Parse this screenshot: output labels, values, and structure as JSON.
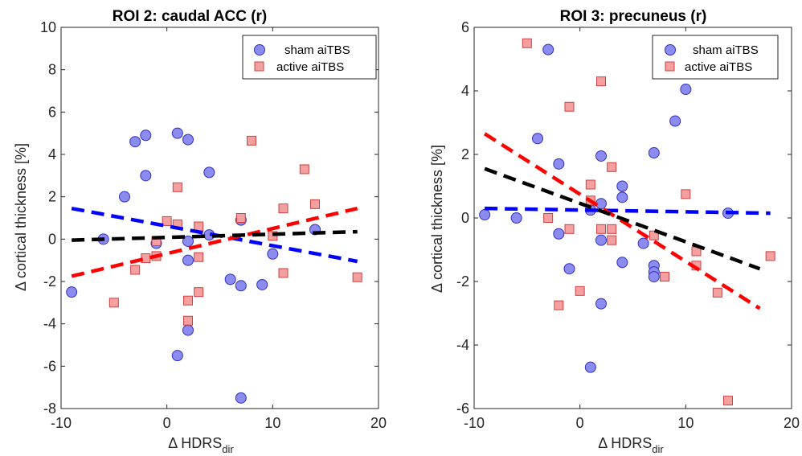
{
  "chart_data": [
    {
      "type": "scatter",
      "title": "ROI 2: caudal ACC (r)",
      "xlabel": "Δ HDRS",
      "xlabel_sub": "dir",
      "ylabel": "Δ cortical thickness [%]",
      "xlim": [
        -10,
        20
      ],
      "ylim": [
        -8,
        10
      ],
      "xticks": [
        -10,
        0,
        10,
        20
      ],
      "yticks": [
        -8,
        -6,
        -4,
        -2,
        0,
        2,
        4,
        6,
        8,
        10
      ],
      "legend_position": "top-right",
      "series": [
        {
          "name": "sham aiTBS",
          "marker": "circle",
          "color": "#8c8cf0",
          "points": [
            [
              -9,
              -2.5
            ],
            [
              -6,
              0
            ],
            [
              -4,
              2
            ],
            [
              -3,
              4.6
            ],
            [
              -2,
              4.9
            ],
            [
              -2,
              3
            ],
            [
              -1,
              -0.2
            ],
            [
              1,
              5
            ],
            [
              1,
              -5.5
            ],
            [
              2,
              4.7
            ],
            [
              2,
              -0.1
            ],
            [
              2,
              -1
            ],
            [
              2,
              -4.3
            ],
            [
              4,
              3.15
            ],
            [
              4,
              0.2
            ],
            [
              6,
              -1.9
            ],
            [
              7,
              0.9
            ],
            [
              7,
              -2.2
            ],
            [
              7,
              -7.5
            ],
            [
              9,
              -2.15
            ],
            [
              10,
              -0.7
            ],
            [
              14,
              0.45
            ]
          ]
        },
        {
          "name": "active aiTBS",
          "marker": "square",
          "color": "#f4a0a0",
          "points": [
            [
              -5,
              -3
            ],
            [
              -3,
              -1.45
            ],
            [
              -2,
              -0.9
            ],
            [
              -1,
              -0.8
            ],
            [
              -1,
              -0.1
            ],
            [
              0,
              0.85
            ],
            [
              1,
              2.45
            ],
            [
              1,
              0.7
            ],
            [
              2,
              -2.9
            ],
            [
              2,
              -3.85
            ],
            [
              3,
              0.6
            ],
            [
              3,
              -0.85
            ],
            [
              3,
              -2.5
            ],
            [
              7,
              1
            ],
            [
              8,
              4.65
            ],
            [
              10,
              0.15
            ],
            [
              11,
              -1.6
            ],
            [
              11,
              1.45
            ],
            [
              13,
              3.3
            ],
            [
              14,
              1.65
            ],
            [
              18,
              -1.8
            ]
          ]
        }
      ],
      "fit_lines": [
        {
          "color": "#0000ff",
          "x": [
            -9,
            18
          ],
          "y": [
            1.45,
            -1.05
          ]
        },
        {
          "color": "#ff0000",
          "x": [
            -9,
            18
          ],
          "y": [
            -1.75,
            1.45
          ]
        },
        {
          "color": "#000000",
          "x": [
            -9,
            18
          ],
          "y": [
            -0.05,
            0.35
          ]
        }
      ]
    },
    {
      "type": "scatter",
      "title": "ROI 3: precuneus (r)",
      "xlabel": "Δ HDRS",
      "xlabel_sub": "dir",
      "ylabel": "Δ cortical thickness [%]",
      "xlim": [
        -10,
        20
      ],
      "ylim": [
        -6,
        6
      ],
      "xticks": [
        -10,
        0,
        10,
        20
      ],
      "yticks": [
        -6,
        -4,
        -2,
        0,
        2,
        4,
        6
      ],
      "legend_position": "top-right",
      "series": [
        {
          "name": "sham aiTBS",
          "marker": "circle",
          "color": "#8c8cf0",
          "points": [
            [
              -9,
              0.1
            ],
            [
              -6,
              0
            ],
            [
              -4,
              2.5
            ],
            [
              -3,
              5.3
            ],
            [
              -2,
              1.7
            ],
            [
              -2,
              -0.5
            ],
            [
              -1,
              -1.6
            ],
            [
              1,
              0.25
            ],
            [
              1,
              -4.7
            ],
            [
              2,
              1.95
            ],
            [
              2,
              0.45
            ],
            [
              2,
              -0.7
            ],
            [
              2,
              -2.7
            ],
            [
              4,
              1
            ],
            [
              4,
              0.65
            ],
            [
              4,
              -1.4
            ],
            [
              6,
              -0.8
            ],
            [
              7,
              2.05
            ],
            [
              7,
              -1.5
            ],
            [
              7,
              -1.7
            ],
            [
              7,
              -1.85
            ],
            [
              9,
              3.05
            ],
            [
              10,
              4.05
            ],
            [
              14,
              0.15
            ]
          ]
        },
        {
          "name": "active aiTBS",
          "marker": "square",
          "color": "#f4a0a0",
          "points": [
            [
              -5,
              5.5
            ],
            [
              -3,
              0
            ],
            [
              -2,
              -2.75
            ],
            [
              -1,
              3.5
            ],
            [
              -1,
              -0.35
            ],
            [
              0,
              -2.3
            ],
            [
              1,
              1.05
            ],
            [
              1,
              0.55
            ],
            [
              2,
              4.3
            ],
            [
              2,
              -0.35
            ],
            [
              3,
              1.6
            ],
            [
              3,
              -0.35
            ],
            [
              3,
              -0.7
            ],
            [
              7,
              -0.55
            ],
            [
              8,
              -1.85
            ],
            [
              10,
              0.75
            ],
            [
              11,
              -1.05
            ],
            [
              11,
              -1.5
            ],
            [
              13,
              -2.35
            ],
            [
              14,
              -5.75
            ],
            [
              18,
              -1.2
            ]
          ]
        }
      ],
      "fit_lines": [
        {
          "color": "#0000ff",
          "x": [
            -9,
            18
          ],
          "y": [
            0.3,
            0.15
          ]
        },
        {
          "color": "#ff0000",
          "x": [
            -9,
            17
          ],
          "y": [
            2.65,
            -2.85
          ]
        },
        {
          "color": "#000000",
          "x": [
            -9,
            17
          ],
          "y": [
            1.55,
            -1.6
          ]
        }
      ]
    }
  ]
}
